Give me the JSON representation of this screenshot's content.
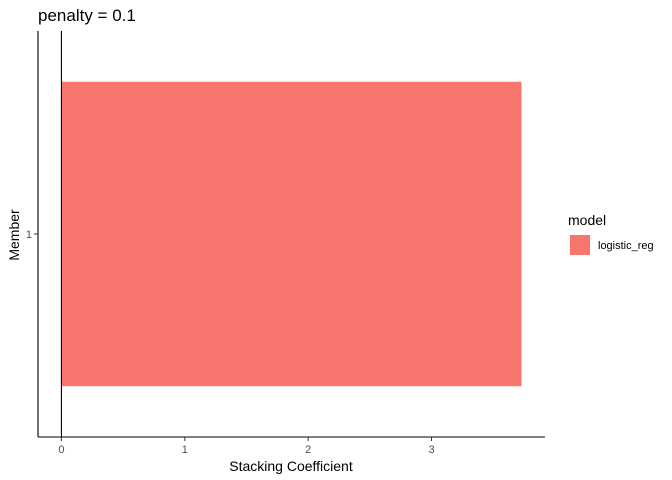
{
  "chart_data": {
    "type": "bar",
    "orientation": "horizontal",
    "title": "penalty = 0.1",
    "xlabel": "Stacking Coefficient",
    "ylabel": "Member",
    "categories": [
      "1"
    ],
    "series": [
      {
        "name": "logistic_reg",
        "values": [
          3.73
        ],
        "color": "#F8766D"
      }
    ],
    "x_ticks": [
      0,
      1,
      2,
      3
    ],
    "xlim": [
      -0.19,
      3.92
    ],
    "reference_line_x": 0,
    "grid": false,
    "legend": {
      "title": "model",
      "placement": "right"
    }
  }
}
